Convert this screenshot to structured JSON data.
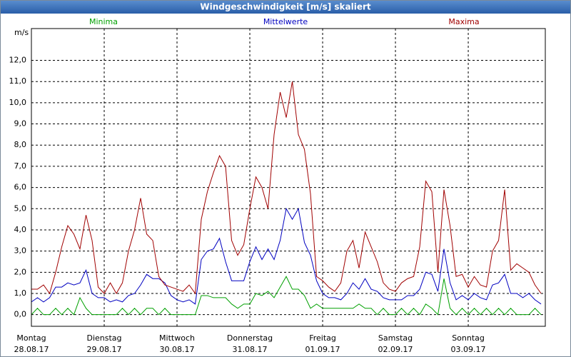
{
  "chart_data": {
    "type": "line",
    "title": "Windgeschwindigkeit [m/s] skaliert",
    "y_label": "m/s",
    "x": [
      0,
      2,
      4,
      6,
      8,
      10,
      12,
      14,
      16,
      18,
      20,
      22,
      24,
      26,
      28,
      30,
      32,
      34,
      36,
      38,
      40,
      42,
      44,
      46,
      48,
      50,
      52,
      54,
      56,
      58,
      60,
      62,
      64,
      66,
      68,
      70,
      72,
      74,
      76,
      78,
      80,
      82,
      84,
      86,
      88,
      90,
      92,
      94,
      96,
      98,
      100,
      102,
      104,
      106,
      108,
      110,
      112,
      114,
      116,
      118,
      120,
      122,
      124,
      126,
      128,
      130,
      132,
      134,
      136,
      138,
      140,
      142,
      144,
      146,
      148,
      150,
      152,
      154,
      156,
      158,
      160,
      162,
      164,
      166,
      168
    ],
    "series": [
      {
        "name": "Minima",
        "color": "#00a000",
        "values": [
          0,
          0.3,
          0,
          0,
          0.3,
          0,
          0.3,
          0,
          0.8,
          0.3,
          0,
          0,
          0,
          0,
          0,
          0.3,
          0,
          0.3,
          0,
          0.3,
          0.3,
          0,
          0.3,
          0,
          0,
          0,
          0,
          0,
          0.9,
          0.9,
          0.8,
          0.8,
          0.8,
          0.5,
          0.3,
          0.5,
          0.5,
          1.0,
          0.9,
          1.1,
          0.8,
          1.3,
          1.8,
          1.2,
          1.2,
          0.9,
          0.3,
          0.5,
          0.3,
          0.3,
          0.3,
          0.3,
          0.3,
          0.3,
          0.5,
          0.3,
          0.3,
          0,
          0.3,
          0,
          0,
          0.3,
          0,
          0.3,
          0,
          0.5,
          0.3,
          0,
          1.7,
          0.3,
          0,
          0.3,
          0,
          0.3,
          0,
          0.3,
          0,
          0.3,
          0,
          0.3,
          0,
          0,
          0,
          0.3,
          0
        ]
      },
      {
        "name": "Mittelwerte",
        "color": "#0000c0",
        "values": [
          0.6,
          0.8,
          0.6,
          0.8,
          1.3,
          1.3,
          1.5,
          1.4,
          1.5,
          2.1,
          1.0,
          0.8,
          0.8,
          0.6,
          0.7,
          0.6,
          0.9,
          1.0,
          1.4,
          1.9,
          1.7,
          1.7,
          1.5,
          0.9,
          0.7,
          0.6,
          0.7,
          0.5,
          2.6,
          3.0,
          3.1,
          3.6,
          2.5,
          1.6,
          1.6,
          1.6,
          2.5,
          3.2,
          2.6,
          3.1,
          2.6,
          3.5,
          5.0,
          4.5,
          5.0,
          3.4,
          2.8,
          1.6,
          1.0,
          0.8,
          0.8,
          0.7,
          1.0,
          1.5,
          1.2,
          1.7,
          1.2,
          1.1,
          0.8,
          0.7,
          0.7,
          0.7,
          0.9,
          0.9,
          1.2,
          2.0,
          1.9,
          1.1,
          3.1,
          1.5,
          0.7,
          0.9,
          0.7,
          1.0,
          0.8,
          0.7,
          1.4,
          1.5,
          1.9,
          1.0,
          1.0,
          0.8,
          1.0,
          0.7,
          0.5
        ]
      },
      {
        "name": "Maxima",
        "color": "#a00000",
        "values": [
          1.2,
          1.2,
          1.4,
          1.0,
          2.0,
          3.2,
          4.2,
          3.8,
          3.1,
          4.7,
          3.5,
          1.3,
          1.0,
          1.5,
          1.0,
          1.5,
          3.0,
          4.0,
          5.5,
          3.8,
          3.5,
          1.8,
          1.4,
          1.3,
          1.2,
          1.1,
          1.4,
          1.0,
          4.5,
          5.8,
          6.7,
          7.5,
          7.0,
          3.5,
          2.8,
          3.3,
          5.0,
          6.5,
          6.0,
          5.0,
          8.5,
          10.5,
          9.3,
          11.0,
          8.5,
          7.8,
          5.7,
          1.8,
          1.6,
          1.3,
          1.1,
          1.5,
          3.0,
          3.5,
          2.2,
          3.9,
          3.2,
          2.5,
          1.5,
          1.2,
          1.1,
          1.5,
          1.7,
          1.8,
          3.2,
          6.3,
          5.8,
          2.0,
          5.9,
          4.2,
          1.8,
          1.9,
          1.3,
          1.8,
          1.4,
          1.3,
          3.0,
          3.5,
          5.9,
          2.1,
          2.4,
          2.2,
          2.0,
          1.4,
          1.0
        ]
      }
    ],
    "xlim": [
      0,
      169.4
    ],
    "xticks": [
      {
        "value": 0,
        "label": "Montag",
        "date": "28.08.17"
      },
      {
        "value": 24,
        "label": "Dienstag",
        "date": "29.08.17"
      },
      {
        "value": 48,
        "label": "Mittwoch",
        "date": "30.08.17"
      },
      {
        "value": 72,
        "label": "Donnerstag",
        "date": "31.08.17"
      },
      {
        "value": 96,
        "label": "Freitag",
        "date": "01.09.17"
      },
      {
        "value": 120,
        "label": "Samstag",
        "date": "02.09.17"
      },
      {
        "value": 144,
        "label": "Sonntag",
        "date": "03.09.17"
      }
    ],
    "ylim": [
      -0.55,
      13.5
    ],
    "yticks": [
      {
        "value": 0,
        "label": "0,0"
      },
      {
        "value": 1,
        "label": "1,0"
      },
      {
        "value": 2,
        "label": "2,0"
      },
      {
        "value": 3,
        "label": "3,0"
      },
      {
        "value": 4,
        "label": "4,0"
      },
      {
        "value": 5,
        "label": "5,0"
      },
      {
        "value": 6,
        "label": "6,0"
      },
      {
        "value": 7,
        "label": "7,0"
      },
      {
        "value": 8,
        "label": "8,0"
      },
      {
        "value": 9,
        "label": "9,0"
      },
      {
        "value": 10,
        "label": "10,0"
      },
      {
        "value": 11,
        "label": "11,0"
      },
      {
        "value": 12,
        "label": "12,0"
      }
    ],
    "grid": true
  }
}
